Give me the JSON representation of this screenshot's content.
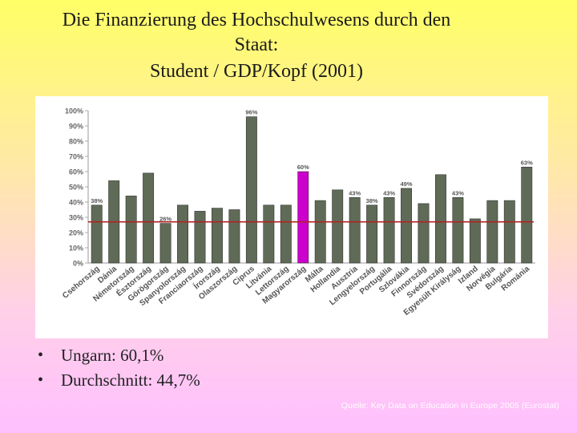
{
  "slide": {
    "title_line1": "Die Finanzierung des Hochschulwesens durch den",
    "title_line2": "Staat:",
    "title_line3": "Student / GDP/Kopf (2001)",
    "bullets": [
      "Ungarn: 60,1%",
      "Durchschnitt: 44,7%"
    ],
    "source": "Quelle: Key Data on Education in Europe 2005 (Eurostat)",
    "colors": {
      "bar": "#5f6b57",
      "highlight": "#cc00cc",
      "reference_line": "#b22222"
    }
  },
  "chart_data": {
    "type": "bar",
    "categories": [
      "Csehország",
      "Dánia",
      "Németország",
      "Észtország",
      "Görögország",
      "Spanyolország",
      "Franciaország",
      "Írország",
      "Olaszország",
      "Ciprus",
      "Litvánia",
      "Lettország",
      "Magyarország",
      "Málta",
      "Hollandia",
      "Ausztria",
      "Lengyelország",
      "Portugália",
      "Szlovákia",
      "Finnország",
      "Svédország",
      "Egyesült Királyság",
      "Izland",
      "Norvégia",
      "Bulgária",
      "Románia"
    ],
    "values": [
      38,
      54,
      44,
      59,
      26,
      38,
      34,
      36,
      35,
      96,
      38,
      38,
      60,
      41,
      48,
      43,
      38,
      43,
      49,
      39,
      58,
      43,
      29,
      41,
      41,
      63
    ],
    "data_labels": [
      "38%",
      "",
      "",
      "",
      "26%",
      "",
      "",
      "",
      "",
      "96%",
      "",
      "",
      "60%",
      "",
      "",
      "43%",
      "38%",
      "43%",
      "49%",
      "",
      "",
      "43%",
      "",
      "",
      "",
      "63%"
    ],
    "highlight_category": "Magyarország",
    "reference_line": 27,
    "y_ticks": [
      "0%",
      "10%",
      "20%",
      "30%",
      "40%",
      "50%",
      "60%",
      "70%",
      "80%",
      "90%",
      "100%"
    ],
    "ylim": [
      0,
      100
    ],
    "title": "",
    "xlabel": "",
    "ylabel": ""
  }
}
